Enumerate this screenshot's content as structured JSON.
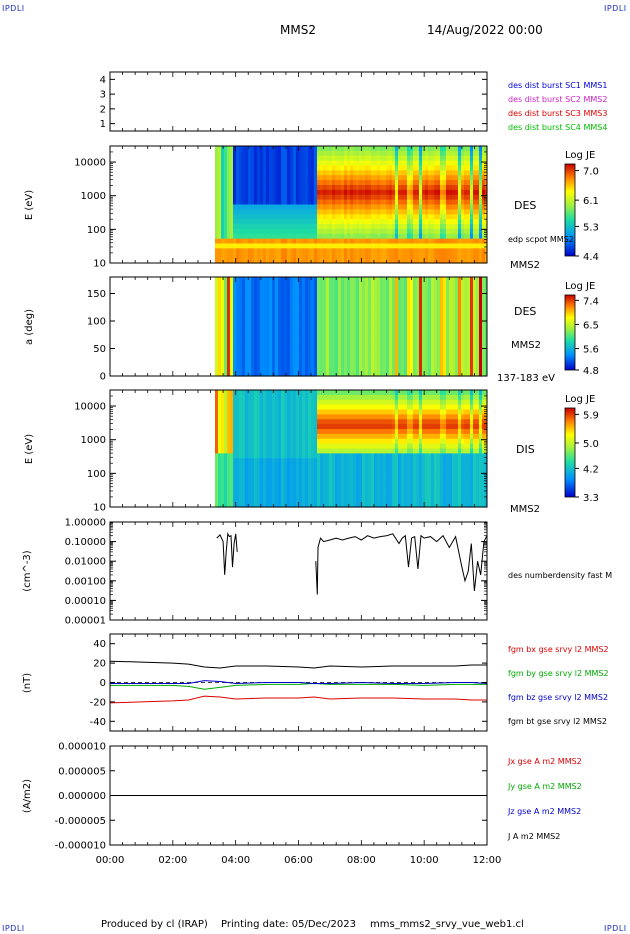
{
  "corner_mark": "IPDLI",
  "header": {
    "spacecraft": "MMS2",
    "date": "14/Aug/2022 00:00"
  },
  "footer": {
    "produced_by": "Produced by cl (IRAP)",
    "printing_date": "Printing date: 05/Dec/2023",
    "file": "mms_mms2_srvy_vue_web1.cl"
  },
  "chart_data": [
    {
      "id": "sc-availability",
      "type": "table",
      "ylim": [
        0.5,
        4.5
      ],
      "yticks": [
        "4",
        "3",
        "2",
        "1"
      ],
      "legend": [
        {
          "name": "des dist burst SC1 MMS1",
          "color": "#0000dd"
        },
        {
          "name": "des dist burst SC2 MMS2",
          "color": "#cc22cc"
        },
        {
          "name": "des dist burst SC3 MMS3",
          "color": "#dd0000"
        },
        {
          "name": "des dist burst SC4 MMS4",
          "color": "#00bb00"
        }
      ]
    },
    {
      "id": "des-energy",
      "type": "heatmap",
      "ylabel": "E (eV)",
      "yscale": "log",
      "ylim": [
        10,
        30000
      ],
      "yticks": [
        "10000",
        "1000",
        "100",
        "10"
      ],
      "data_start_hour": 3.35,
      "label": "DES",
      "sublabel": "edp scpot MMS2",
      "bottom_label": "MMS2",
      "colorbar": {
        "title": "Log JE",
        "ticks": [
          "7.0",
          "6.1",
          "5.3",
          "4.4"
        ],
        "range": [
          4.4,
          7.2
        ]
      }
    },
    {
      "id": "des-pitch",
      "type": "heatmap",
      "ylabel": "a (deg)",
      "ylim": [
        0,
        180
      ],
      "yticks": [
        "150",
        "100",
        "50",
        "0"
      ],
      "data_start_hour": 3.35,
      "label": "DES",
      "sublabel": "MMS2",
      "bottom_label": "137-183 eV",
      "colorbar": {
        "title": "Log JE",
        "ticks": [
          "7.4",
          "6.5",
          "5.6",
          "4.8"
        ],
        "range": [
          4.8,
          7.6
        ]
      }
    },
    {
      "id": "dis-energy",
      "type": "heatmap",
      "ylabel": "E (eV)",
      "yscale": "log",
      "ylim": [
        10,
        30000
      ],
      "yticks": [
        "10000",
        "1000",
        "100",
        "10"
      ],
      "data_start_hour": 3.35,
      "label": "DIS",
      "bottom_label": "MMS2",
      "colorbar": {
        "title": "Log JE",
        "ticks": [
          "5.9",
          "5.0",
          "4.2",
          "3.3"
        ],
        "range": [
          3.3,
          6.1
        ]
      }
    },
    {
      "id": "density",
      "type": "line",
      "ylabel": "(cm^-3)",
      "yscale": "log",
      "ylim": [
        1e-05,
        1.0
      ],
      "yticks": [
        "1.00000",
        "0.10000",
        "0.01000",
        "0.00100",
        "0.00010",
        "0.00001"
      ],
      "legend": [
        {
          "name": "des numberdensity fast M",
          "color": "#000000"
        }
      ],
      "series": [
        {
          "name": "des numberdensity fast M",
          "color": "#000000",
          "x": [
            3.4,
            3.5,
            3.6,
            3.65,
            3.7,
            3.75,
            3.8,
            3.85,
            3.9,
            3.95,
            4.0,
            4.05,
            6.55,
            6.6,
            6.62,
            6.7,
            6.8,
            7.0,
            7.2,
            7.4,
            7.6,
            7.8,
            8.0,
            8.2,
            8.4,
            8.6,
            8.8,
            9.0,
            9.2,
            9.3,
            9.4,
            9.5,
            9.6,
            9.7,
            9.8,
            9.9,
            10.0,
            10.2,
            10.4,
            10.6,
            10.8,
            11.0,
            11.2,
            11.3,
            11.4,
            11.5,
            11.6,
            11.7,
            11.8,
            11.9,
            12.0
          ],
          "y": [
            0.15,
            0.22,
            0.1,
            0.002,
            0.03,
            0.25,
            0.18,
            0.2,
            0.005,
            0.08,
            0.25,
            0.03,
            0.01,
            0.0002,
            0.05,
            0.15,
            0.1,
            0.12,
            0.15,
            0.12,
            0.15,
            0.18,
            0.12,
            0.2,
            0.15,
            0.18,
            0.2,
            0.25,
            0.08,
            0.15,
            0.2,
            0.005,
            0.15,
            0.18,
            0.004,
            0.2,
            0.15,
            0.18,
            0.1,
            0.2,
            0.05,
            0.18,
            0.005,
            0.001,
            0.003,
            0.08,
            0.0003,
            0.01,
            0.002,
            0.1,
            0.2
          ]
        }
      ]
    },
    {
      "id": "magnetic-field",
      "type": "line",
      "ylabel": "(nT)",
      "ylim": [
        -50,
        50
      ],
      "yticks": [
        "40",
        "20",
        "0",
        "-20",
        "-40"
      ],
      "legend": [
        {
          "name": "fgm bx gse srvy l2 MMS2",
          "color": "#dd0000"
        },
        {
          "name": "fgm by gse srvy l2 MMS2",
          "color": "#00aa00"
        },
        {
          "name": "fgm bz gse srvy l2 MMS2",
          "color": "#0000cc"
        },
        {
          "name": "fgm bt gse srvy l2 MMS2",
          "color": "#000000"
        }
      ],
      "series": [
        {
          "name": "fgm bt gse srvy l2 MMS2",
          "color": "#000000",
          "x": [
            0,
            1,
            2,
            2.5,
            3,
            3.5,
            4,
            5,
            6,
            6.5,
            7,
            8,
            9,
            10,
            11,
            11.5,
            12
          ],
          "y": [
            22,
            21,
            20,
            19,
            16,
            15,
            17,
            17,
            16,
            15,
            17,
            16,
            17,
            17,
            17,
            18,
            18
          ]
        },
        {
          "name": "fgm bx gse srvy l2 MMS2",
          "color": "#dd0000",
          "x": [
            0,
            1,
            2,
            2.5,
            3,
            3.5,
            4,
            5,
            6,
            6.5,
            7,
            8,
            9,
            10,
            11,
            11.5,
            12
          ],
          "y": [
            -21,
            -20,
            -19,
            -18,
            -14,
            -15,
            -17,
            -16,
            -16,
            -15,
            -17,
            -16,
            -16,
            -17,
            -17,
            -18,
            -18
          ]
        },
        {
          "name": "fgm by gse srvy l2 MMS2",
          "color": "#00aa00",
          "x": [
            0,
            1,
            2,
            2.5,
            3,
            3.5,
            4,
            5,
            6,
            6.5,
            7,
            8,
            9,
            10,
            11,
            11.5,
            12
          ],
          "y": [
            -3,
            -3,
            -3,
            -4,
            -7,
            -5,
            -3,
            -2,
            -2,
            -1,
            -2,
            -2,
            -2,
            -3,
            -2,
            -2,
            -2
          ]
        },
        {
          "name": "fgm bz gse srvy l2 MMS2",
          "color": "#0000cc",
          "x": [
            0,
            1,
            2,
            2.5,
            3,
            3.5,
            4,
            5,
            6,
            6.5,
            7,
            8,
            9,
            10,
            11,
            11.5,
            12
          ],
          "y": [
            -1,
            -1,
            -1,
            -1,
            2,
            1,
            -1,
            0,
            0,
            -1,
            -1,
            0,
            -1,
            -1,
            0,
            0,
            -1
          ]
        }
      ]
    },
    {
      "id": "current-density",
      "type": "line",
      "ylabel": "(A/m2)",
      "ylim": [
        -1e-05,
        1e-05
      ],
      "yticks": [
        "0.000010",
        "0.000005",
        "0.000000",
        "-0.000005",
        "-0.000010"
      ],
      "legend": [
        {
          "name": "Jx gse A m2 MMS2",
          "color": "#dd0000"
        },
        {
          "name": "Jy gse A m2 MMS2",
          "color": "#00aa00"
        },
        {
          "name": "Jz gse A m2 MMS2",
          "color": "#0000cc"
        },
        {
          "name": "J A m2 MMS2",
          "color": "#000000"
        }
      ],
      "series": [
        {
          "name": "J A m2 MMS2",
          "color": "#000000",
          "x": [
            0,
            12
          ],
          "y": [
            0,
            0
          ]
        }
      ]
    }
  ],
  "time_axis": {
    "labels": [
      "00:00",
      "02:00",
      "04:00",
      "06:00",
      "08:00",
      "10:00",
      "12:00"
    ],
    "range_hours": [
      0,
      12
    ]
  }
}
